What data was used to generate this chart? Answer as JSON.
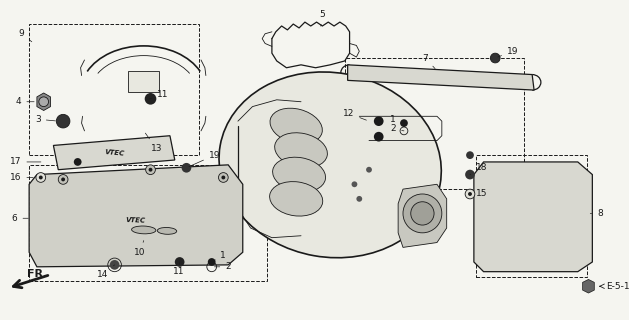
{
  "bg_color": "#f5f5f0",
  "line_color": "#1a1a1a",
  "fig_width": 6.29,
  "fig_height": 3.2,
  "dpi": 100,
  "label_fs": 6.5,
  "ref_label": "E-5-1",
  "fr_text": "FR."
}
